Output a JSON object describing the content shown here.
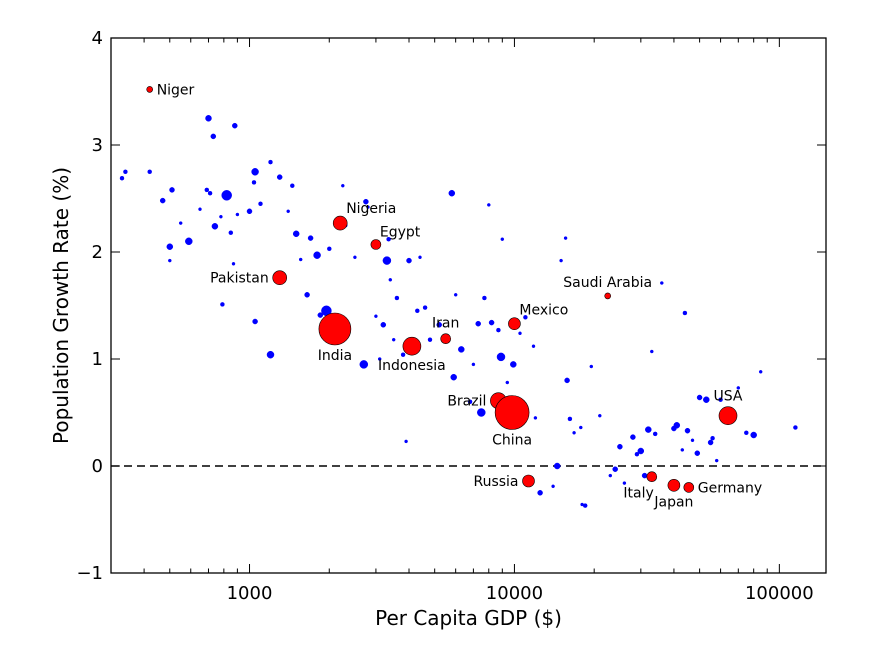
{
  "chart_data": {
    "type": "scatter",
    "xlabel": "Per Capita GDP ($)",
    "ylabel": "Population Growth Rate (%)",
    "xscale": "log",
    "xlim": [
      300,
      150000
    ],
    "ylim": [
      -1,
      4
    ],
    "x_ticks": [
      1000,
      10000,
      100000
    ],
    "x_tick_labels": [
      "1000",
      "10000",
      "100000"
    ],
    "y_ticks": [
      -1,
      0,
      1,
      2,
      3,
      4
    ],
    "y_tick_labels": [
      "−1",
      "0",
      "1",
      "2",
      "3",
      "4"
    ],
    "reference_line": {
      "y": 0,
      "style": "dashed"
    },
    "grid": false,
    "colors": {
      "highlight": "#ff0000",
      "other": "#0000ff",
      "edge": "#000000"
    },
    "highlighted": [
      {
        "label": "Niger",
        "x": 420,
        "y": 3.52,
        "size": 3,
        "label_pos": "right"
      },
      {
        "label": "Nigeria",
        "x": 2200,
        "y": 2.27,
        "size": 7,
        "label_pos": "above-right"
      },
      {
        "label": "Egypt",
        "x": 3000,
        "y": 2.07,
        "size": 5,
        "label_pos": "above-right"
      },
      {
        "label": "Pakistan",
        "x": 1300,
        "y": 1.76,
        "size": 7,
        "label_pos": "left"
      },
      {
        "label": "Saudi Arabia",
        "x": 22500,
        "y": 1.59,
        "size": 3,
        "label_pos": "above"
      },
      {
        "label": "Mexico",
        "x": 10000,
        "y": 1.33,
        "size": 6,
        "label_pos": "above-right"
      },
      {
        "label": "Iran",
        "x": 5500,
        "y": 1.19,
        "size": 5,
        "label_pos": "above"
      },
      {
        "label": "India",
        "x": 2100,
        "y": 1.28,
        "size": 16,
        "label_pos": "below"
      },
      {
        "label": "Indonesia",
        "x": 4100,
        "y": 1.12,
        "size": 9,
        "label_pos": "below"
      },
      {
        "label": "Brazil",
        "x": 8700,
        "y": 0.61,
        "size": 8,
        "label_pos": "left"
      },
      {
        "label": "China",
        "x": 9800,
        "y": 0.5,
        "size": 17,
        "label_pos": "below"
      },
      {
        "label": "USA",
        "x": 64000,
        "y": 0.47,
        "size": 9,
        "label_pos": "above"
      },
      {
        "label": "Russia",
        "x": 11300,
        "y": -0.14,
        "size": 6,
        "label_pos": "left"
      },
      {
        "label": "Italy",
        "x": 33000,
        "y": -0.1,
        "size": 5,
        "label_pos": "below-left"
      },
      {
        "label": "Japan",
        "x": 40000,
        "y": -0.18,
        "size": 6,
        "label_pos": "below"
      },
      {
        "label": "Germany",
        "x": 45500,
        "y": -0.2,
        "size": 5,
        "label_pos": "right"
      }
    ],
    "others": [
      [
        330,
        2.69,
        2
      ],
      [
        340,
        2.75,
        2
      ],
      [
        420,
        2.75,
        2
      ],
      [
        470,
        2.48,
        2.5
      ],
      [
        500,
        2.05,
        3
      ],
      [
        510,
        2.58,
        2.5
      ],
      [
        500,
        1.92,
        1.5
      ],
      [
        550,
        2.27,
        1.5
      ],
      [
        590,
        2.1,
        3.5
      ],
      [
        650,
        2.4,
        1.5
      ],
      [
        690,
        2.58,
        2
      ],
      [
        700,
        3.25,
        3
      ],
      [
        710,
        2.55,
        2
      ],
      [
        730,
        3.08,
        2.5
      ],
      [
        740,
        2.24,
        3
      ],
      [
        780,
        2.33,
        1.5
      ],
      [
        790,
        1.51,
        2
      ],
      [
        820,
        2.53,
        5
      ],
      [
        850,
        2.18,
        2
      ],
      [
        880,
        3.18,
        2.5
      ],
      [
        900,
        2.35,
        1.5
      ],
      [
        870,
        1.89,
        1.5
      ],
      [
        1000,
        2.38,
        2.5
      ],
      [
        1040,
        2.65,
        2
      ],
      [
        1050,
        2.75,
        3.5
      ],
      [
        1050,
        1.35,
        2.5
      ],
      [
        1100,
        2.45,
        2
      ],
      [
        1200,
        2.84,
        2
      ],
      [
        1200,
        1.04,
        3.5
      ],
      [
        1300,
        2.7,
        2.5
      ],
      [
        1400,
        2.38,
        1.5
      ],
      [
        1450,
        2.62,
        2
      ],
      [
        1500,
        2.17,
        3
      ],
      [
        1560,
        1.93,
        1.5
      ],
      [
        1650,
        1.6,
        2.5
      ],
      [
        1700,
        2.13,
        2.5
      ],
      [
        1800,
        1.97,
        3.5
      ],
      [
        1850,
        1.41,
        2.5
      ],
      [
        1950,
        1.45,
        5
      ],
      [
        2000,
        2.03,
        2
      ],
      [
        2050,
        1.32,
        2
      ],
      [
        2250,
        2.62,
        1.5
      ],
      [
        2300,
        2.25,
        2
      ],
      [
        2500,
        1.95,
        1.5
      ],
      [
        2700,
        0.95,
        4
      ],
      [
        2750,
        2.47,
        2.5
      ],
      [
        2800,
        2.42,
        1.5
      ],
      [
        3000,
        1.4,
        1.5
      ],
      [
        3100,
        1.0,
        1.5
      ],
      [
        3200,
        1.32,
        2.5
      ],
      [
        3300,
        1.92,
        4
      ],
      [
        3350,
        2.12,
        2
      ],
      [
        3400,
        1.74,
        1.5
      ],
      [
        3500,
        1.18,
        1.5
      ],
      [
        3600,
        1.57,
        2
      ],
      [
        3800,
        1.04,
        2
      ],
      [
        3900,
        0.23,
        1.5
      ],
      [
        4000,
        1.92,
        2.5
      ],
      [
        4100,
        1.08,
        1.5
      ],
      [
        4300,
        1.45,
        2
      ],
      [
        4400,
        1.95,
        1.5
      ],
      [
        4600,
        1.48,
        2
      ],
      [
        4800,
        1.18,
        2
      ],
      [
        5200,
        1.32,
        2.5
      ],
      [
        5800,
        2.55,
        3
      ],
      [
        5900,
        0.83,
        3
      ],
      [
        6000,
        1.6,
        1.5
      ],
      [
        6300,
        1.09,
        3
      ],
      [
        6800,
        0.6,
        2
      ],
      [
        7000,
        0.95,
        1.5
      ],
      [
        7300,
        1.33,
        2.5
      ],
      [
        7500,
        0.5,
        4
      ],
      [
        7700,
        1.57,
        2
      ],
      [
        8000,
        2.44,
        1.5
      ],
      [
        8200,
        1.34,
        2.5
      ],
      [
        8700,
        1.27,
        2
      ],
      [
        8900,
        1.02,
        4
      ],
      [
        9000,
        2.12,
        1.5
      ],
      [
        9400,
        0.78,
        1.5
      ],
      [
        9900,
        0.95,
        3
      ],
      [
        10500,
        1.24,
        1.5
      ],
      [
        11000,
        1.39,
        2
      ],
      [
        11800,
        1.12,
        1.5
      ],
      [
        12000,
        0.45,
        1.5
      ],
      [
        12500,
        -0.25,
        2.5
      ],
      [
        14000,
        -0.19,
        1.5
      ],
      [
        14500,
        0.0,
        3
      ],
      [
        15000,
        1.92,
        1.5
      ],
      [
        15600,
        2.13,
        1.5
      ],
      [
        15800,
        0.8,
        2.5
      ],
      [
        16200,
        0.44,
        2
      ],
      [
        16800,
        0.31,
        1.5
      ],
      [
        17800,
        0.36,
        1.5
      ],
      [
        18000,
        -0.36,
        1.5
      ],
      [
        18500,
        -0.37,
        2
      ],
      [
        19500,
        0.93,
        1.5
      ],
      [
        21000,
        0.47,
        1.5
      ],
      [
        23000,
        -0.09,
        1.5
      ],
      [
        24000,
        -0.03,
        2.5
      ],
      [
        25000,
        0.18,
        2.5
      ],
      [
        26000,
        -0.16,
        1.5
      ],
      [
        28000,
        0.27,
        2.5
      ],
      [
        29000,
        0.11,
        2
      ],
      [
        30000,
        0.14,
        3
      ],
      [
        31000,
        -0.09,
        2.5
      ],
      [
        32000,
        0.34,
        3
      ],
      [
        33000,
        1.07,
        1.5
      ],
      [
        34000,
        0.3,
        2
      ],
      [
        36000,
        1.71,
        1.5
      ],
      [
        40000,
        0.35,
        2.5
      ],
      [
        41000,
        0.38,
        3
      ],
      [
        43000,
        0.15,
        1.5
      ],
      [
        44000,
        1.43,
        2
      ],
      [
        45000,
        0.33,
        2.5
      ],
      [
        47000,
        0.24,
        1.5
      ],
      [
        49000,
        0.12,
        2.5
      ],
      [
        50000,
        0.64,
        2.5
      ],
      [
        53000,
        0.62,
        3
      ],
      [
        55000,
        0.22,
        2.5
      ],
      [
        56000,
        0.26,
        2
      ],
      [
        58000,
        0.05,
        1.5
      ],
      [
        60000,
        0.62,
        2
      ],
      [
        62000,
        0.45,
        2.5
      ],
      [
        70000,
        0.73,
        1.5
      ],
      [
        75000,
        0.31,
        2
      ],
      [
        80000,
        0.29,
        3
      ],
      [
        85000,
        0.88,
        1.5
      ],
      [
        115000,
        0.36,
        2
      ]
    ],
    "others_row_format": [
      "x",
      "y",
      "size"
    ]
  }
}
